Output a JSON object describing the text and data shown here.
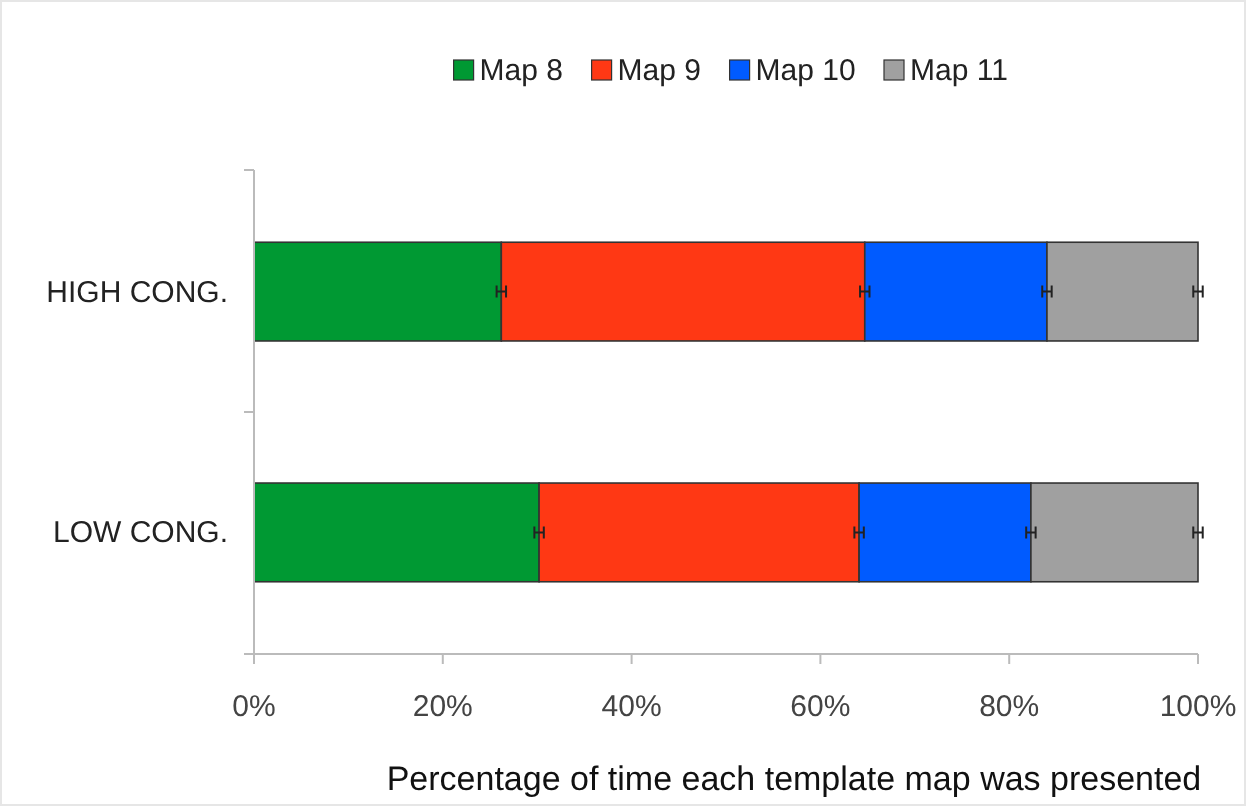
{
  "chart_data": {
    "type": "bar",
    "orientation": "horizontal",
    "stacked": true,
    "xlabel": "Percentage of time each template map was presented",
    "categories": [
      "HIGH CONG.",
      "LOW CONG."
    ],
    "series": [
      {
        "name": "Map 8",
        "color": "#009933",
        "values": [
          26.2,
          30.2
        ],
        "errors": [
          0.5,
          0.5
        ]
      },
      {
        "name": "Map 9",
        "color": "#ff3814",
        "values": [
          38.5,
          33.9
        ],
        "errors": [
          0.5,
          0.5
        ]
      },
      {
        "name": "Map 10",
        "color": "#005bff",
        "values": [
          19.3,
          18.2
        ],
        "errors": [
          0.5,
          0.5
        ]
      },
      {
        "name": "Map 11",
        "color": "#a0a0a0",
        "values": [
          16.0,
          17.7
        ],
        "errors": [
          0.5,
          0.5
        ]
      }
    ],
    "xlim": [
      0,
      100
    ],
    "xticks": [
      {
        "value": 0,
        "label": "0%"
      },
      {
        "value": 20,
        "label": "20%"
      },
      {
        "value": 40,
        "label": "40%"
      },
      {
        "value": 60,
        "label": "60%"
      },
      {
        "value": 80,
        "label": "80%"
      },
      {
        "value": 100,
        "label": "100%"
      }
    ],
    "legend": "top",
    "grid": false
  }
}
